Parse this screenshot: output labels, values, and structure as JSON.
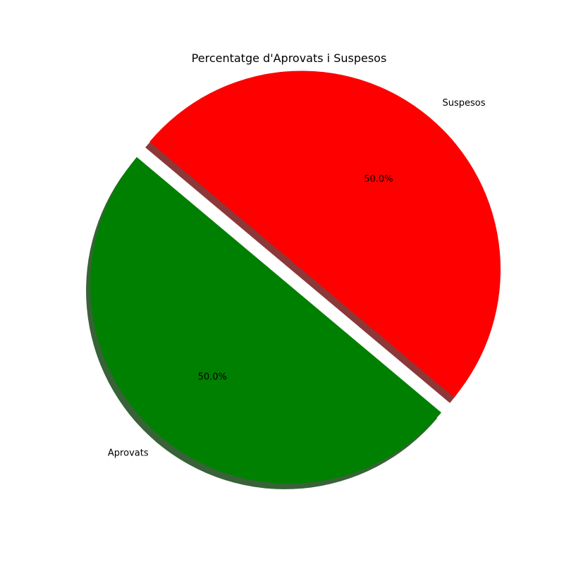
{
  "chart_data": {
    "type": "pie",
    "title": "Percentatge d'Aprovats i Suspesos",
    "categories": [
      "Aprovats",
      "Suspesos"
    ],
    "values": [
      50.0,
      50.0
    ],
    "percent_labels": [
      "50.0%",
      "50.0%"
    ],
    "colors": [
      "#008000",
      "#ff0000"
    ],
    "explode": [
      0,
      0.1
    ],
    "start_angle_deg": 140,
    "shadow": true,
    "legend": "none"
  }
}
